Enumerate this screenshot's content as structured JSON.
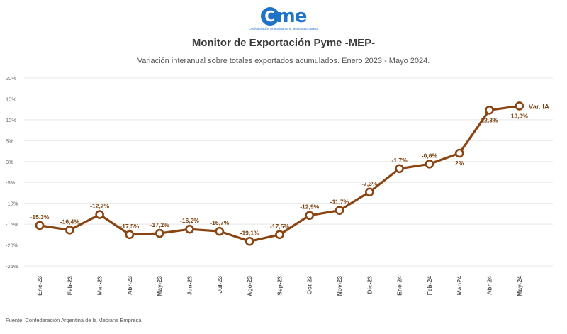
{
  "header": {
    "logo_text": "me",
    "logo_letter": "C",
    "logo_subtitle": "Confederación Argentina de la Mediana Empresa",
    "title": "Monitor de Exportación Pyme -MEP-",
    "subtitle": "Variación interanual sobre totales exportados acumulados. Enero 2023 - Mayo 2024."
  },
  "source": "Fuente: Confederación Argentina de la Mediana Empresa",
  "chart_data": {
    "type": "line",
    "title": "Monitor de Exportación Pyme -MEP-",
    "subtitle": "Variación interanual sobre totales exportados acumulados. Enero 2023 - Mayo 2024.",
    "categories": [
      "Ene-23",
      "Feb-23",
      "Mar-23",
      "Abr-23",
      "May-23",
      "Jun-23",
      "Jul-23",
      "Ago-23",
      "Sep-23",
      "Oct-23",
      "Nov-23",
      "Dic-23",
      "Ene-24",
      "Feb-24",
      "Mar-24",
      "Abr-24",
      "May-24"
    ],
    "series": [
      {
        "name": "Var. IA",
        "color": "#8b4513",
        "values": [
          -15.3,
          -16.4,
          -12.7,
          -17.5,
          -17.2,
          -16.2,
          -16.7,
          -19.1,
          -17.5,
          -12.9,
          -11.7,
          -7.3,
          -1.7,
          -0.6,
          2,
          12.3,
          13.3
        ],
        "labels": [
          "-15,3%",
          "-16,4%",
          "-12,7%",
          "-17,5%",
          "-17,2%",
          "-16,2%",
          "-16,7%",
          "-19,1%",
          "-17,5%",
          "-12,9%",
          "-11,7%",
          "-7,3%",
          "-1,7%",
          "-0,6%",
          "2%",
          "12,3%",
          "13,3%"
        ]
      }
    ],
    "yticks": [
      20,
      15,
      10,
      5,
      0,
      -5,
      -10,
      -15,
      -20,
      -25
    ],
    "ytick_labels": [
      "20%",
      "15%",
      "10%",
      "5%",
      "0%",
      "-5%",
      "-10%",
      "-15%",
      "-20%",
      "-25%"
    ],
    "ylim": [
      -25,
      20
    ],
    "xlabel": "",
    "ylabel": "",
    "grid": true,
    "legend": "series label at end of line"
  }
}
